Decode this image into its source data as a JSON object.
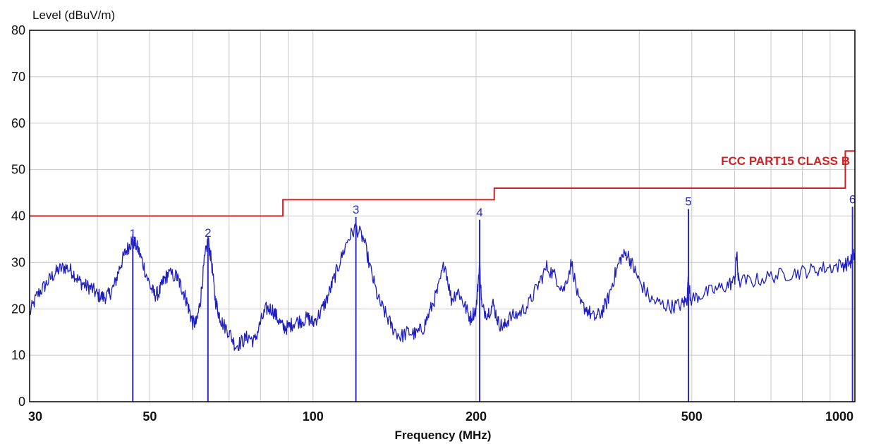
{
  "chart_data": {
    "type": "line",
    "xlabel": "Frequency (MHz)",
    "ylabel": "Level (dBuV/m)",
    "x_scale": "log",
    "xlim": [
      30,
      1000
    ],
    "ylim": [
      0,
      80
    ],
    "x_ticks": [
      30,
      50,
      100,
      200,
      500,
      1000
    ],
    "y_ticks": [
      0,
      10,
      20,
      30,
      40,
      50,
      60,
      70,
      80
    ],
    "grid": true,
    "colors": {
      "trace": "#1f1fbf",
      "limit": "#d42020",
      "markers": "#2a2ad0",
      "grid": "#c8c8c8",
      "frame": "#000000"
    },
    "series": [
      {
        "kind": "limit",
        "name": "FCC PART15 CLASS B",
        "points": [
          [
            30,
            40
          ],
          [
            88,
            40
          ],
          [
            88,
            43.5
          ],
          [
            216,
            43.5
          ],
          [
            216,
            46
          ],
          [
            960,
            46
          ],
          [
            960,
            54
          ],
          [
            1000,
            54
          ]
        ]
      },
      {
        "kind": "trace",
        "points": [
          [
            30,
            19
          ],
          [
            31,
            23
          ],
          [
            32,
            25
          ],
          [
            33,
            27
          ],
          [
            34,
            28.5
          ],
          [
            35,
            29
          ],
          [
            36,
            28
          ],
          [
            37,
            26
          ],
          [
            38,
            25
          ],
          [
            39,
            24.5
          ],
          [
            40,
            23
          ],
          [
            41,
            22.5
          ],
          [
            42,
            23
          ],
          [
            43,
            25
          ],
          [
            44,
            29
          ],
          [
            45,
            32
          ],
          [
            46,
            34
          ],
          [
            46.5,
            34.7
          ],
          [
            47.5,
            33
          ],
          [
            48.5,
            30
          ],
          [
            50,
            25
          ],
          [
            51,
            23
          ],
          [
            52,
            23.5
          ],
          [
            53,
            26
          ],
          [
            54,
            27.5
          ],
          [
            56,
            27
          ],
          [
            57,
            25
          ],
          [
            58,
            23
          ],
          [
            59,
            20
          ],
          [
            60,
            17
          ],
          [
            61,
            17
          ],
          [
            62,
            22
          ],
          [
            63,
            30
          ],
          [
            64,
            35
          ],
          [
            65,
            30
          ],
          [
            66,
            22
          ],
          [
            67,
            19
          ],
          [
            68,
            17
          ],
          [
            70,
            15
          ],
          [
            72,
            12
          ],
          [
            74,
            13
          ],
          [
            76,
            14
          ],
          [
            78,
            13
          ],
          [
            80,
            17
          ],
          [
            82,
            20
          ],
          [
            84,
            20
          ],
          [
            86,
            18
          ],
          [
            88,
            16
          ],
          [
            90,
            16
          ],
          [
            92,
            17
          ],
          [
            95,
            17.5
          ],
          [
            98,
            18
          ],
          [
            100,
            17
          ],
          [
            103,
            19
          ],
          [
            106,
            22
          ],
          [
            109,
            26
          ],
          [
            112,
            30
          ],
          [
            116,
            35
          ],
          [
            120,
            37.5
          ],
          [
            124,
            35
          ],
          [
            128,
            28
          ],
          [
            132,
            22
          ],
          [
            136,
            19
          ],
          [
            140,
            16
          ],
          [
            145,
            14
          ],
          [
            150,
            15
          ],
          [
            155,
            14.5
          ],
          [
            160,
            16
          ],
          [
            165,
            20
          ],
          [
            170,
            24
          ],
          [
            175,
            30
          ],
          [
            180,
            22
          ],
          [
            185,
            24
          ],
          [
            190,
            21
          ],
          [
            195,
            18
          ],
          [
            200,
            20
          ],
          [
            203,
            30
          ],
          [
            205,
            20
          ],
          [
            210,
            19
          ],
          [
            215,
            21
          ],
          [
            220,
            17
          ],
          [
            225,
            16
          ],
          [
            230,
            18
          ],
          [
            240,
            19
          ],
          [
            250,
            21
          ],
          [
            260,
            25
          ],
          [
            270,
            29
          ],
          [
            280,
            27
          ],
          [
            290,
            24
          ],
          [
            300,
            30
          ],
          [
            310,
            21
          ],
          [
            320,
            20
          ],
          [
            330,
            18
          ],
          [
            340,
            19
          ],
          [
            350,
            22
          ],
          [
            360,
            27
          ],
          [
            370,
            31
          ],
          [
            380,
            32
          ],
          [
            390,
            29
          ],
          [
            400,
            26
          ],
          [
            420,
            22
          ],
          [
            440,
            21
          ],
          [
            460,
            20.5
          ],
          [
            480,
            21
          ],
          [
            490,
            22
          ],
          [
            493,
            27
          ],
          [
            497,
            22
          ],
          [
            520,
            23
          ],
          [
            550,
            24
          ],
          [
            580,
            25
          ],
          [
            600,
            26
          ],
          [
            605,
            32
          ],
          [
            610,
            26
          ],
          [
            650,
            26
          ],
          [
            700,
            27
          ],
          [
            750,
            27.5
          ],
          [
            800,
            28
          ],
          [
            850,
            28.5
          ],
          [
            900,
            29
          ],
          [
            950,
            29.5
          ],
          [
            980,
            30
          ],
          [
            1000,
            32
          ]
        ]
      }
    ],
    "markers": [
      {
        "label": "1",
        "x": 46.5,
        "y": 34.6
      },
      {
        "label": "2",
        "x": 64,
        "y": 34.8
      },
      {
        "label": "3",
        "x": 120,
        "y": 39.8
      },
      {
        "label": "4",
        "x": 203,
        "y": 39.2
      },
      {
        "label": "5",
        "x": 493,
        "y": 41.5
      },
      {
        "label": "6",
        "x": 990,
        "y": 42
      }
    ]
  }
}
